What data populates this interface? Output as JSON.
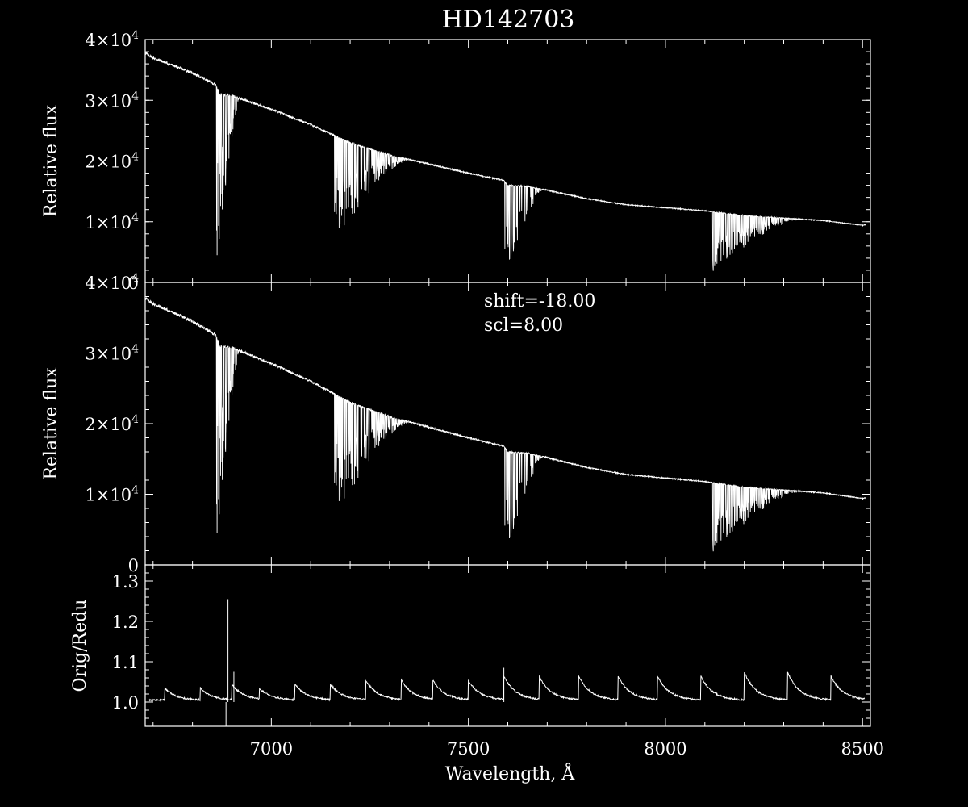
{
  "colors": {
    "background": "#000000",
    "foreground": "#ffffff"
  },
  "chart_data": [
    {
      "type": "line",
      "panel": "top",
      "title": "HD142703",
      "ylabel": "Relative flux",
      "xlim": [
        6680,
        8520
      ],
      "ylim": [
        0,
        40000
      ],
      "yticks": [
        {
          "value": 0,
          "base": "0",
          "exp": ""
        },
        {
          "value": 10000,
          "base": "1×10",
          "exp": "4"
        },
        {
          "value": 20000,
          "base": "2×10",
          "exp": "4"
        },
        {
          "value": 30000,
          "base": "3×10",
          "exp": "4"
        },
        {
          "value": 40000,
          "base": "4×10",
          "exp": "4"
        }
      ],
      "continuum": [
        [
          6680,
          37800
        ],
        [
          6700,
          37000
        ],
        [
          6800,
          34500
        ],
        [
          6860,
          32500
        ],
        [
          6870,
          31000
        ],
        [
          6900,
          30800
        ],
        [
          7000,
          28500
        ],
        [
          7100,
          26000
        ],
        [
          7200,
          23000
        ],
        [
          7300,
          21000
        ],
        [
          7400,
          19500
        ],
        [
          7500,
          18000
        ],
        [
          7590,
          16800
        ],
        [
          7600,
          16000
        ],
        [
          7650,
          15800
        ],
        [
          7700,
          15200
        ],
        [
          7800,
          13800
        ],
        [
          7900,
          12800
        ],
        [
          8000,
          12300
        ],
        [
          8100,
          11800
        ],
        [
          8200,
          11000
        ],
        [
          8300,
          10600
        ],
        [
          8400,
          10200
        ],
        [
          8500,
          9400
        ],
        [
          8520,
          9700
        ]
      ],
      "bands": [
        {
          "range": [
            6860,
            6920
          ],
          "depth": 0.96
        },
        {
          "range": [
            7160,
            7350
          ],
          "depth": 0.75
        },
        {
          "range": [
            7590,
            7690
          ],
          "depth": 1.0
        },
        {
          "range": [
            8120,
            8340
          ],
          "depth": 0.85
        }
      ]
    },
    {
      "type": "line",
      "panel": "middle",
      "ylabel": "Relative flux",
      "xlim": [
        6680,
        8520
      ],
      "ylim": [
        0,
        40000
      ],
      "annotations": [
        "shift=-18.00",
        "scl=8.00"
      ],
      "yticks": [
        {
          "value": 0,
          "base": "0",
          "exp": ""
        },
        {
          "value": 10000,
          "base": "1×10",
          "exp": "4"
        },
        {
          "value": 20000,
          "base": "2×10",
          "exp": "4"
        },
        {
          "value": 30000,
          "base": "3×10",
          "exp": "4"
        },
        {
          "value": 40000,
          "base": "4×10",
          "exp": "4"
        }
      ],
      "continuum": [
        [
          6680,
          37800
        ],
        [
          6700,
          37000
        ],
        [
          6800,
          34500
        ],
        [
          6860,
          32500
        ],
        [
          6870,
          31000
        ],
        [
          6900,
          30800
        ],
        [
          7000,
          28500
        ],
        [
          7100,
          26000
        ],
        [
          7200,
          23000
        ],
        [
          7300,
          21000
        ],
        [
          7400,
          19500
        ],
        [
          7500,
          18000
        ],
        [
          7590,
          16800
        ],
        [
          7600,
          16000
        ],
        [
          7650,
          15800
        ],
        [
          7700,
          15200
        ],
        [
          7800,
          13800
        ],
        [
          7900,
          12800
        ],
        [
          8000,
          12300
        ],
        [
          8100,
          11800
        ],
        [
          8200,
          11000
        ],
        [
          8300,
          10600
        ],
        [
          8400,
          10200
        ],
        [
          8500,
          9400
        ],
        [
          8520,
          9700
        ]
      ],
      "bands": [
        {
          "range": [
            6860,
            6920
          ],
          "depth": 0.96
        },
        {
          "range": [
            7160,
            7350
          ],
          "depth": 0.75
        },
        {
          "range": [
            7590,
            7690
          ],
          "depth": 1.0
        },
        {
          "range": [
            8120,
            8340
          ],
          "depth": 0.85
        }
      ]
    },
    {
      "type": "line",
      "panel": "bottom",
      "ylabel": "Orig/Redu",
      "xlabel": "Wavelength, Å",
      "xlim": [
        6680,
        8520
      ],
      "ylim": [
        0.94,
        1.34
      ],
      "yticks": [
        {
          "value": 1.0,
          "label": "1.0"
        },
        {
          "value": 1.1,
          "label": "1.1"
        },
        {
          "value": 1.2,
          "label": "1.2"
        },
        {
          "value": 1.3,
          "label": "1.3"
        }
      ],
      "xticks": [
        7000,
        7500,
        8000,
        8500
      ],
      "sawtooth_peaks": [
        [
          6730,
          1.03
        ],
        [
          6820,
          1.03
        ],
        [
          6900,
          1.04
        ],
        [
          6970,
          1.03
        ],
        [
          7060,
          1.04
        ],
        [
          7150,
          1.04
        ],
        [
          7240,
          1.05
        ],
        [
          7330,
          1.05
        ],
        [
          7410,
          1.05
        ],
        [
          7500,
          1.05
        ],
        [
          7590,
          1.06
        ],
        [
          7680,
          1.06
        ],
        [
          7780,
          1.06
        ],
        [
          7880,
          1.06
        ],
        [
          7980,
          1.06
        ],
        [
          8090,
          1.06
        ],
        [
          8200,
          1.07
        ],
        [
          8310,
          1.07
        ],
        [
          8420,
          1.06
        ]
      ],
      "spikes": [
        [
          6890,
          1.255
        ],
        [
          6905,
          1.075
        ],
        [
          7590,
          1.085
        ]
      ]
    }
  ]
}
